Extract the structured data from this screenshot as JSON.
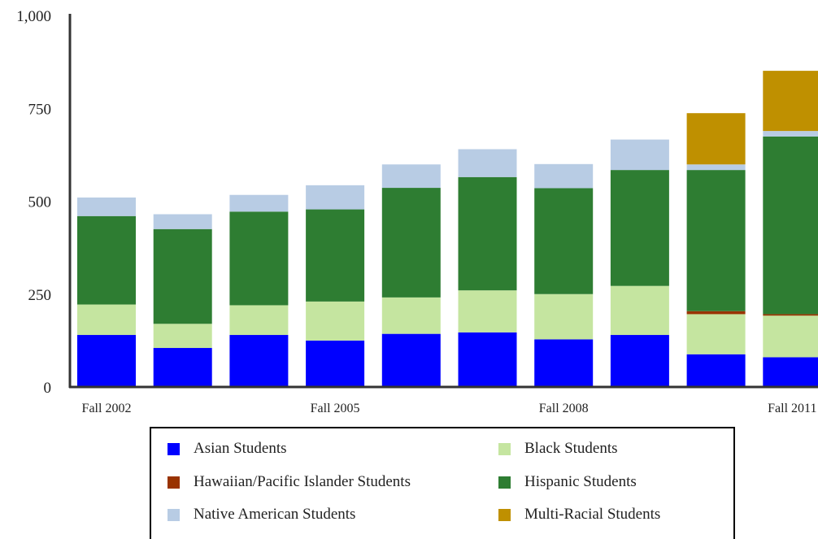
{
  "chart_data": {
    "type": "bar",
    "stacked": true,
    "categories": [
      "Fall 2002",
      "",
      "",
      "Fall 2005",
      "",
      "",
      "Fall 2008",
      "",
      "",
      "Fall 2011"
    ],
    "x_tick_labels": [
      "Fall 2002",
      "Fall 2005",
      "Fall 2008",
      "Fall 2011"
    ],
    "y_ticks": [
      "0",
      "250",
      "500",
      "750",
      "1,000"
    ],
    "ylim": [
      0,
      1000
    ],
    "legend_position": "bottom",
    "series": [
      {
        "name": "Asian Students",
        "color": "#0000ff",
        "values": [
          140,
          105,
          140,
          125,
          143,
          147,
          128,
          140,
          88,
          80
        ]
      },
      {
        "name": "Black Students",
        "color": "#c5e5a0",
        "values": [
          82,
          65,
          80,
          105,
          98,
          113,
          122,
          132,
          108,
          112
        ]
      },
      {
        "name": "Hawaiian/Pacific Islander Students",
        "color": "#993300",
        "values": [
          0,
          0,
          0,
          0,
          0,
          0,
          0,
          0,
          8,
          4
        ]
      },
      {
        "name": "Hispanic Students",
        "color": "#2e7d32",
        "values": [
          238,
          255,
          252,
          248,
          295,
          305,
          285,
          312,
          380,
          478
        ]
      },
      {
        "name": "Native American Students",
        "color": "#b8cce4",
        "values": [
          50,
          40,
          45,
          65,
          63,
          75,
          65,
          82,
          15,
          15
        ]
      },
      {
        "name": "Multi-Racial Students",
        "color": "#bf9000",
        "values": [
          0,
          0,
          0,
          0,
          0,
          0,
          0,
          0,
          138,
          162
        ]
      }
    ]
  },
  "legend": {
    "items": [
      {
        "label": "Asian Students",
        "color": "#0000ff"
      },
      {
        "label": "Black Students",
        "color": "#c5e5a0"
      },
      {
        "label": "Hawaiian/Pacific Islander Students",
        "color": "#993300"
      },
      {
        "label": "Hispanic Students",
        "color": "#2e7d32"
      },
      {
        "label": "Native American Students",
        "color": "#b8cce4"
      },
      {
        "label": "Multi-Racial Students",
        "color": "#bf9000"
      }
    ]
  }
}
